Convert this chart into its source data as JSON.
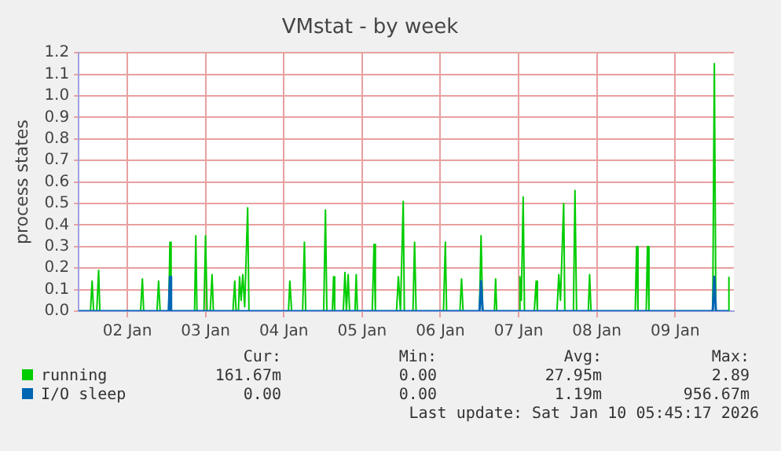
{
  "chart_data": {
    "type": "line",
    "title": "VMstat - by week",
    "ylabel": "process states",
    "xlim": [
      "2026-01-01T09:07",
      "2026-01-09T18:00"
    ],
    "xticks": [
      {
        "value": "2026-01-02",
        "label": "02 Jan"
      },
      {
        "value": "2026-01-03",
        "label": "03 Jan"
      },
      {
        "value": "2026-01-04",
        "label": "04 Jan"
      },
      {
        "value": "2026-01-05",
        "label": "05 Jan"
      },
      {
        "value": "2026-01-06",
        "label": "06 Jan"
      },
      {
        "value": "2026-01-07",
        "label": "07 Jan"
      },
      {
        "value": "2026-01-08",
        "label": "08 Jan"
      },
      {
        "value": "2026-01-09",
        "label": "09 Jan"
      }
    ],
    "ylim": [
      0,
      1.2
    ],
    "yticks": [
      {
        "value": 0,
        "label": "0.0"
      },
      {
        "value": 0.1,
        "label": "0.1"
      },
      {
        "value": 0.2,
        "label": "0.2"
      },
      {
        "value": 0.3,
        "label": "0.3"
      },
      {
        "value": 0.4,
        "label": "0.4"
      },
      {
        "value": 0.5,
        "label": "0.5"
      },
      {
        "value": 0.6,
        "label": "0.6"
      },
      {
        "value": 0.7,
        "label": "0.7"
      },
      {
        "value": 0.8,
        "label": "0.8"
      },
      {
        "value": 0.9,
        "label": "0.9"
      },
      {
        "value": 1.0,
        "label": "1.0"
      },
      {
        "value": 1.1,
        "label": "1.1"
      },
      {
        "value": 1.2,
        "label": "1.2"
      }
    ],
    "grid": true,
    "legend": "bottom",
    "marker": "none",
    "line_style": "solid",
    "series": [
      {
        "name": "running",
        "color": "#00cc00",
        "x": [
          "2026-01-01T09:07",
          "2026-01-01T12:43",
          "2026-01-01T13:13",
          "2026-01-01T13:41",
          "2026-01-01T14:38",
          "2026-01-01T15:13",
          "2026-01-01T15:36",
          "2026-01-02T04:05",
          "2026-01-02T04:38",
          "2026-01-02T05:02",
          "2026-01-02T09:07",
          "2026-01-02T09:36",
          "2026-01-02T10:05",
          "2026-01-02T12:43",
          "2026-01-02T13:05",
          "2026-01-02T13:26",
          "2026-01-02T20:38",
          "2026-01-02T21:01",
          "2026-01-02T21:22",
          "2026-01-02T23:31",
          "2026-01-03T00:00",
          "2026-01-03T00:29",
          "2026-01-03T01:26",
          "2026-01-03T02:00",
          "2026-01-03T02:24",
          "2026-01-03T08:24",
          "2026-01-03T08:57",
          "2026-01-03T09:22",
          "2026-01-03T10:05",
          "2026-01-03T10:26",
          "2026-01-03T10:55",
          "2026-01-03T11:25",
          "2026-01-03T12:00",
          "2026-01-03T12:55",
          "2026-01-03T13:19",
          "2026-01-04T01:26",
          "2026-01-04T01:51",
          "2026-01-04T02:24",
          "2026-01-04T05:46",
          "2026-01-04T06:19",
          "2026-01-04T06:43",
          "2026-01-04T12:14",
          "2026-01-04T12:46",
          "2026-01-04T13:12",
          "2026-01-04T14:53",
          "2026-01-04T15:16",
          "2026-01-04T15:36",
          "2026-01-04T18:14",
          "2026-01-04T18:45",
          "2026-01-04T19:12",
          "2026-01-04T19:44",
          "2026-01-04T20:10",
          "2026-01-04T21:50",
          "2026-01-04T22:12",
          "2026-01-04T22:34",
          "2026-01-05T03:07",
          "2026-01-05T03:40",
          "2026-01-05T04:05",
          "2026-01-05T10:34",
          "2026-01-05T11:08",
          "2026-01-05T11:46",
          "2026-01-05T12:37",
          "2026-01-05T12:58",
          "2026-01-05T15:36",
          "2026-01-05T16:06",
          "2026-01-05T16:34",
          "2026-01-06T00:58",
          "2026-01-06T01:32",
          "2026-01-06T01:55",
          "2026-01-06T06:00",
          "2026-01-06T06:30",
          "2026-01-06T06:58",
          "2026-01-06T12:00",
          "2026-01-06T12:29",
          "2026-01-06T12:58",
          "2026-01-06T16:34",
          "2026-01-06T16:57",
          "2026-01-06T17:17",
          "2026-01-07T00:00",
          "2026-01-07T00:24",
          "2026-01-07T00:50",
          "2026-01-07T01:24",
          "2026-01-07T01:48",
          "2026-01-07T04:48",
          "2026-01-07T05:23",
          "2026-01-07T05:46",
          "2026-01-07T11:46",
          "2026-01-07T12:19",
          "2026-01-07T12:50",
          "2026-01-07T13:49",
          "2026-01-07T14:10",
          "2026-01-07T16:48",
          "2026-01-07T17:17",
          "2026-01-07T17:46",
          "2026-01-07T21:22",
          "2026-01-07T21:46",
          "2026-01-07T22:12",
          "2026-01-08T11:46",
          "2026-01-08T12:10",
          "2026-01-08T12:36",
          "2026-01-08T15:07",
          "2026-01-08T15:30",
          "2026-01-08T15:58",
          "2026-01-09T11:31",
          "2026-01-09T12:01",
          "2026-01-09T12:29",
          "2026-01-09T16:05",
          "2026-01-09T16:29"
        ],
        "values": [
          0,
          0,
          0.14,
          0,
          0,
          0.19,
          0,
          0,
          0.15,
          0,
          0,
          0.14,
          0,
          0,
          0.32,
          0,
          0,
          0.35,
          0,
          0,
          0.35,
          0,
          0,
          0.17,
          0,
          0,
          0.14,
          0,
          0,
          0.16,
          0.05,
          0.17,
          0.02,
          0.48,
          0,
          0,
          0.14,
          0,
          0,
          0.32,
          0,
          0,
          0.47,
          0,
          0,
          0.16,
          0,
          0,
          0.18,
          0,
          0.17,
          0,
          0,
          0.17,
          0,
          0,
          0.31,
          0,
          0,
          0.16,
          0,
          0.51,
          0,
          0,
          0.32,
          0,
          0,
          0.32,
          0,
          0,
          0.15,
          0,
          0,
          0.35,
          0,
          0,
          0.15,
          0,
          0,
          0.16,
          0.05,
          0.53,
          0,
          0,
          0.14,
          0,
          0,
          0.17,
          0.05,
          0.5,
          0,
          0,
          0.56,
          0,
          0,
          0.17,
          0,
          0,
          0.3,
          0,
          0,
          0.3,
          0,
          0,
          1.15,
          0,
          0,
          0.16
        ]
      },
      {
        "name": "I/O sleep",
        "color": "#0066b3",
        "x": [
          "2026-01-01T09:07",
          "2026-01-02T12:43",
          "2026-01-02T13:05",
          "2026-01-02T13:26",
          "2026-01-06T12:00",
          "2026-01-06T12:29",
          "2026-01-06T12:58",
          "2026-01-09T11:31",
          "2026-01-09T12:01",
          "2026-01-09T12:29",
          "2026-01-09T16:29"
        ],
        "values": [
          0,
          0,
          0.16,
          0,
          0,
          0.14,
          0,
          0,
          0.16,
          0,
          0
        ]
      }
    ],
    "annotations": [
      "Cur:",
      "Min:",
      "Avg:",
      "Max:",
      "161.67m",
      "0.00",
      "27.95m",
      "2.89",
      "0.00",
      "0.00",
      "1.19m",
      "956.67m",
      "Last update: Sat Jan 10 05:45:17 2026"
    ]
  }
}
